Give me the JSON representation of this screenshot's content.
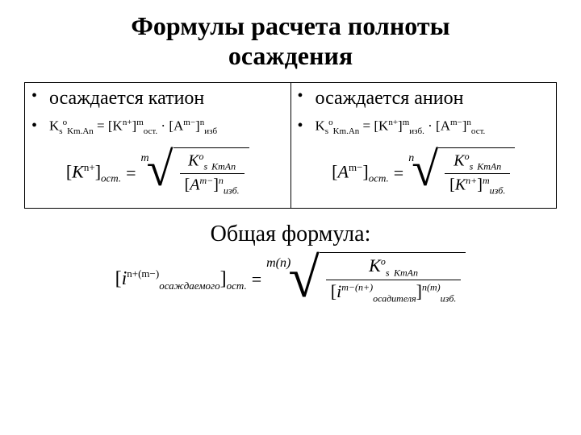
{
  "title_line1": "Формулы расчета полноты",
  "title_line2": "осаждения",
  "left": {
    "heading": "осаждается катион",
    "ks_eq": {
      "K": "K",
      "s": "s",
      "o": "o",
      "sub": "Km.An",
      "eq": " = ",
      "t1a": "[K",
      "t1sup": "n+",
      "t1b": "]",
      "t1exp": "m",
      "t1sub": "ост.",
      "dot": " · ",
      "t2a": "[A",
      "t2sup": "m−",
      "t2b": "]",
      "t2exp": "n",
      "t2sub": "изб"
    },
    "root_expr": {
      "lhs_a": "[",
      "lhs_K": "K",
      "lhs_sup": "n+",
      "lhs_b": "]",
      "lhs_sub": "ост.",
      "idx": "m",
      "num_K": "K",
      "num_s": "s",
      "num_o": "o",
      "num_sub": "KmAn",
      "den_a": "[",
      "den_A": "A",
      "den_sup": "m−",
      "den_b": "]",
      "den_exp": "n",
      "den_sub": "изб."
    }
  },
  "right": {
    "heading": "осаждается анион",
    "ks_eq": {
      "K": "K",
      "s": "s",
      "o": "o",
      "sub": "Km.An",
      "eq": " = ",
      "t1a": "[K",
      "t1sup": "n+",
      "t1b": "]",
      "t1exp": "m",
      "t1sub": "изб.",
      "dot": " · ",
      "t2a": "[A",
      "t2sup": "m−",
      "t2b": "]",
      "t2exp": "n",
      "t2sub": "ост."
    },
    "root_expr": {
      "lhs_a": "[",
      "lhs_A": "A",
      "lhs_sup": "m−",
      "lhs_b": "]",
      "lhs_sub": "ост.",
      "idx": "n",
      "num_K": "K",
      "num_s": "s",
      "num_o": "o",
      "num_sub": "KmAn",
      "den_a": "[",
      "den_K": "K",
      "den_sup": "n+",
      "den_b": "]",
      "den_exp": "m",
      "den_sub": "изб."
    }
  },
  "general": {
    "heading": "Общая формула:",
    "lhs_a": "[",
    "lhs_i": "i",
    "lhs_sup": "n+(m−)",
    "lhs_sub": "осаждаемого",
    "lhs_b": "]",
    "lhs_sub2": "ост.",
    "idx": "m(n)",
    "num_K": "K",
    "num_s": "s",
    "num_o": "o",
    "num_sub": "KmAn",
    "den_a": "[",
    "den_i": "i",
    "den_sup": "m−(n+)",
    "den_sub": "осадителя",
    "den_b": "]",
    "den_exp": "n(m)",
    "den_sub2": "изб."
  }
}
